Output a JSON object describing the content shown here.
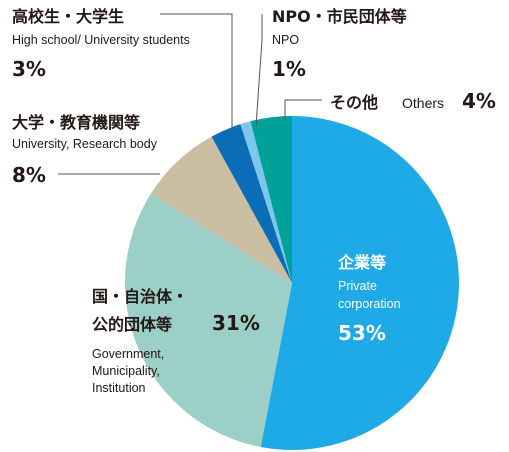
{
  "chart_data": {
    "type": "pie",
    "categories": [
      [
        "企業等"
      ],
      [
        "国・自治体・",
        "公的団体等"
      ],
      [
        "大学・教育機関等"
      ],
      [
        "高校生・大学生"
      ],
      [
        "NPO・市民団体等"
      ],
      [
        "その他"
      ]
    ],
    "categories_en": [
      [
        "Private",
        "corporation"
      ],
      [
        "Government,",
        "Municipality,",
        "Institution"
      ],
      [
        "University, Research body"
      ],
      [
        "High school/ University students"
      ],
      [
        "NPO"
      ],
      [
        "Others"
      ]
    ],
    "values": [
      53,
      31,
      8,
      3,
      1,
      4
    ],
    "value_labels": [
      "53%",
      "31%",
      "8%",
      "3%",
      "1%",
      "4%"
    ],
    "colors": [
      "#1eaae7",
      "#9ccfc7",
      "#c9bea2",
      "#0b6db5",
      "#7cc6ec",
      "#00a199"
    ]
  }
}
